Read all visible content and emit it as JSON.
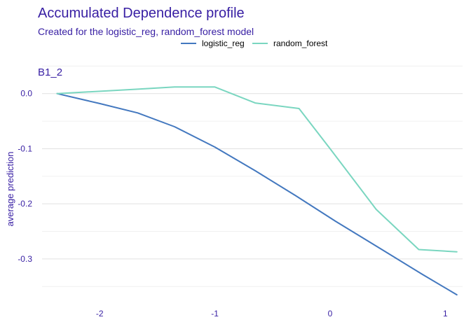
{
  "chart_data": {
    "type": "line",
    "title": "Accumulated Dependence profile",
    "subtitle": "Created for the logistic_reg, random_forest model",
    "facet_label": "B1_2",
    "xlabel": "",
    "ylabel": "average prediction",
    "xlim": [
      -2.5,
      1.15
    ],
    "ylim": [
      -0.37,
      0.02
    ],
    "x_ticks": [
      -2,
      -1,
      0,
      1
    ],
    "x_tick_labels": [
      "-2",
      "-1",
      "0",
      "1"
    ],
    "y_ticks": [
      0.0,
      -0.1,
      -0.2,
      -0.3
    ],
    "y_tick_labels": [
      "0.0",
      "-0.1",
      "-0.2",
      "-0.3"
    ],
    "grid": true,
    "legend_position": "top",
    "series": [
      {
        "name": "logistic_reg",
        "color": "#4378bf",
        "x": [
          -2.37,
          -2.0,
          -1.67,
          -1.35,
          -1.0,
          -0.65,
          -0.3,
          0.05,
          0.45,
          0.8,
          1.1
        ],
        "y": [
          0.0,
          -0.018,
          -0.035,
          -0.06,
          -0.097,
          -0.14,
          -0.185,
          -0.232,
          -0.283,
          -0.328,
          -0.365
        ]
      },
      {
        "name": "random_forest",
        "color": "#7ad6c0",
        "x": [
          -2.37,
          -1.67,
          -1.35,
          -1.0,
          -0.65,
          -0.27,
          0.0,
          0.4,
          0.77,
          1.1
        ],
        "y": [
          0.0,
          0.008,
          0.012,
          0.012,
          -0.017,
          -0.027,
          -0.1,
          -0.21,
          -0.283,
          -0.287
        ]
      }
    ]
  }
}
